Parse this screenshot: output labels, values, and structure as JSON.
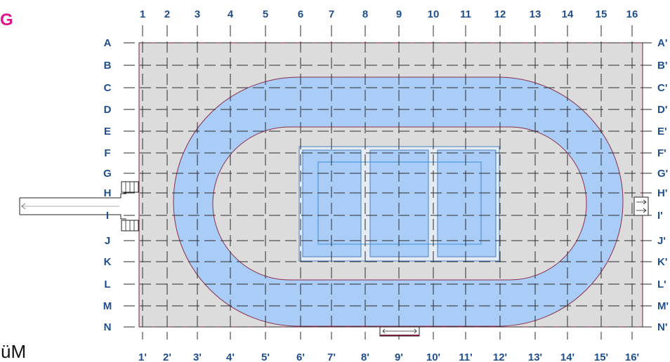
{
  "corner_mark": "G",
  "corner_text": "üM",
  "columns_top": [
    "1",
    "2",
    "3",
    "4",
    "5",
    "6",
    "7",
    "8",
    "9",
    "10",
    "11",
    "12",
    "13",
    "14",
    "15",
    "16"
  ],
  "columns_bottom": [
    "1'",
    "2'",
    "3'",
    "4'",
    "5'",
    "6'",
    "7'",
    "8'",
    "9'",
    "10'",
    "11'",
    "12'",
    "13'",
    "14'",
    "15'",
    "16'"
  ],
  "rows_left": [
    "A",
    "B",
    "C",
    "D",
    "E",
    "F",
    "G",
    "H",
    "I",
    "J",
    "K",
    "L",
    "M",
    "N"
  ],
  "rows_right": [
    "A'",
    "B'",
    "C'",
    "D'",
    "E'",
    "F'",
    "G'",
    "H'",
    "I'",
    "J'",
    "K'",
    "L'",
    "M'",
    "N'"
  ],
  "colors": {
    "label": "#1f4e8c",
    "corner_mark": "#e0148c",
    "floor": "#dcdcdc",
    "track_fill": "#a9cdf7",
    "track_stroke": "#8a2d4a",
    "grid_line": "#2b2b2b"
  },
  "icons": [
    "left-entrance-icon",
    "right-entrance-icon",
    "bottom-entrance-icon",
    "stair-icon"
  ]
}
